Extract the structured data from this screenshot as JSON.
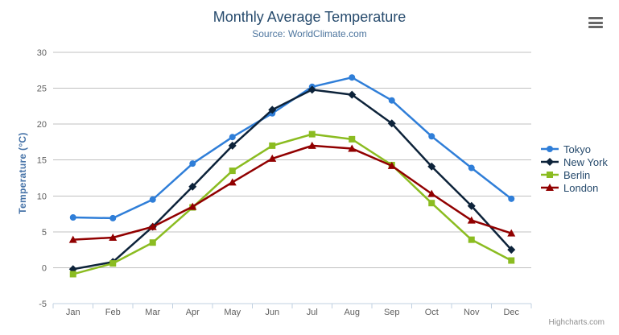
{
  "chart_data": {
    "type": "line",
    "title": "Monthly Average Temperature",
    "subtitle": "Source: WorldClimate.com",
    "xlabel": "",
    "ylabel": "Temperature (°C)",
    "categories": [
      "Jan",
      "Feb",
      "Mar",
      "Apr",
      "May",
      "Jun",
      "Jul",
      "Aug",
      "Sep",
      "Oct",
      "Nov",
      "Dec"
    ],
    "ylim": [
      -5,
      30
    ],
    "yticks": [
      -5,
      0,
      5,
      10,
      15,
      20,
      25,
      30
    ],
    "grid": true,
    "legend_position": "right",
    "series": [
      {
        "name": "Tokyo",
        "color": "#2f7ed8",
        "marker": "circle",
        "values": [
          7.0,
          6.9,
          9.5,
          14.5,
          18.2,
          21.5,
          25.2,
          26.5,
          23.3,
          18.3,
          13.9,
          9.6
        ]
      },
      {
        "name": "New York",
        "color": "#0d233a",
        "marker": "diamond",
        "values": [
          -0.2,
          0.8,
          5.7,
          11.3,
          17.0,
          22.0,
          24.8,
          24.1,
          20.1,
          14.1,
          8.6,
          2.5
        ]
      },
      {
        "name": "Berlin",
        "color": "#8bbc21",
        "marker": "square",
        "values": [
          -0.9,
          0.6,
          3.5,
          8.4,
          13.5,
          17.0,
          18.6,
          17.9,
          14.3,
          9.0,
          3.9,
          1.0
        ]
      },
      {
        "name": "London",
        "color": "#910000",
        "marker": "triangle",
        "values": [
          3.9,
          4.2,
          5.7,
          8.5,
          11.9,
          15.2,
          17.0,
          16.6,
          14.2,
          10.3,
          6.6,
          4.8
        ]
      }
    ]
  },
  "credits": "Highcharts.com",
  "export_menu": {
    "icon": "hamburger-icon"
  },
  "colors": {
    "title": "#274b6d",
    "subtitle": "#4d759e",
    "axis_title": "#4572a7",
    "axis_label": "#606060",
    "grid_line": "#c0c0c0",
    "axis_line": "#c0d0e0",
    "credits": "#909090",
    "export_icon": "#666666"
  }
}
